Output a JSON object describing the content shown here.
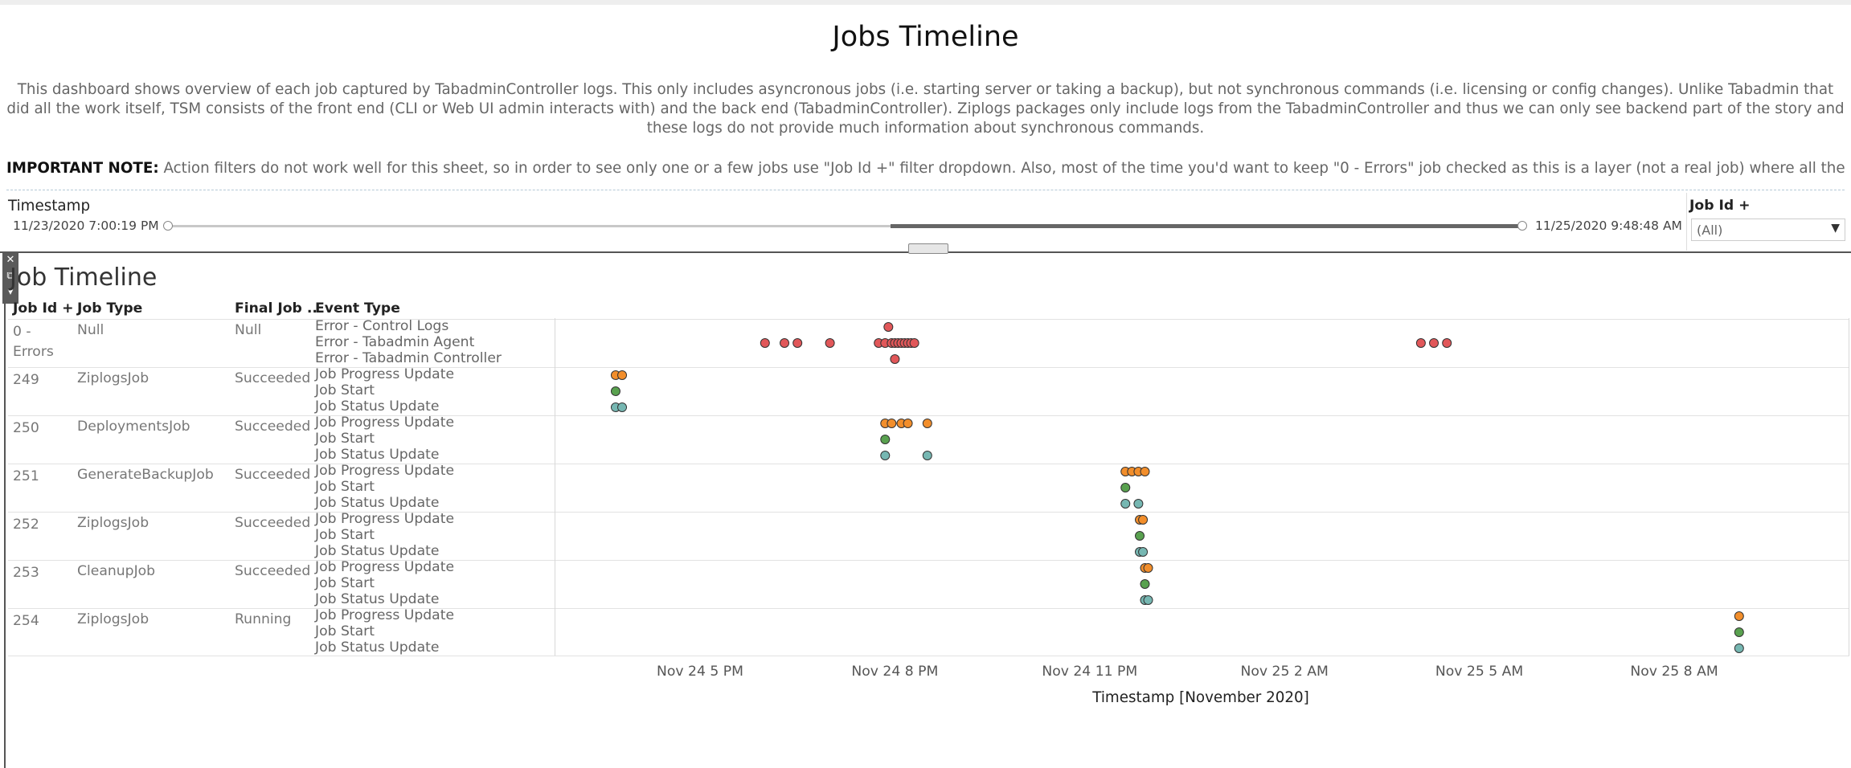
{
  "dashboard": {
    "title": "Jobs Timeline",
    "description": "This dashboard shows overview of each job captured by TabadminController logs. This only includes asyncronous jobs (i.e. starting server or taking a backup), but not synchronous commands (i.e. licensing or config changes). Unlike Tabadmin that did all the work itself, TSM consists of the front end (CLI or Web UI admin interacts with) and the back end (TabadminController). Ziplogs packages only include logs from the TabadminController and thus we can only see backend part of the story and these logs do not provide much information about synchronous commands.",
    "note_label": "IMPORTANT NOTE:",
    "note_text": " Action filters do not work well for this sheet, so in order to see only one or a few jobs use \"Job Id +\" filter dropdown. Also, most of the time you'd want to keep \"0 - Errors\" job checked as this is a layer (not a real job) where all the errors are displayed. .."
  },
  "filters": {
    "timestamp_label": "Timestamp",
    "timestamp_start": "11/23/2020 7:00:19 PM",
    "timestamp_end": "11/25/2020 9:48:48 AM",
    "jobid_label": "Job Id +",
    "jobid_value": "(All)"
  },
  "toolbar": {
    "close": "✕",
    "popout": "⧉",
    "menu": "▾"
  },
  "sheet": {
    "title": "Job Timeline",
    "headers": {
      "job_id": "Job Id +",
      "job_type": "Job Type",
      "final": "Final Job ..",
      "event": "Event Type"
    }
  },
  "rows": [
    {
      "job_id": "0 -\nErrors",
      "job_type": "Null",
      "final": "Null",
      "events": [
        "Error - Control Logs",
        "Error - Tabadmin Agent",
        "Error - Tabadmin Controller"
      ]
    },
    {
      "job_id": "249",
      "job_type": "ZiplogsJob",
      "final": "Succeeded",
      "events": [
        "Job Progress Update",
        "Job Start",
        "Job Status Update"
      ]
    },
    {
      "job_id": "250",
      "job_type": "DeploymentsJob",
      "final": "Succeeded",
      "events": [
        "Job Progress Update",
        "Job Start",
        "Job Status Update"
      ]
    },
    {
      "job_id": "251",
      "job_type": "GenerateBackupJob",
      "final": "Succeeded",
      "events": [
        "Job Progress Update",
        "Job Start",
        "Job Status Update"
      ]
    },
    {
      "job_id": "252",
      "job_type": "ZiplogsJob",
      "final": "Succeeded",
      "events": [
        "Job Progress Update",
        "Job Start",
        "Job Status Update"
      ]
    },
    {
      "job_id": "253",
      "job_type": "CleanupJob",
      "final": "Succeeded",
      "events": [
        "Job Progress Update",
        "Job Start",
        "Job Status Update"
      ]
    },
    {
      "job_id": "254",
      "job_type": "ZiplogsJob",
      "final": "Running",
      "events": [
        "Job Progress Update",
        "Job Start",
        "Job Status Update"
      ]
    }
  ],
  "chart_data": {
    "type": "scatter",
    "xlabel": "Timestamp [November 2020]",
    "x_ticks": [
      "Nov 24 5 PM",
      "Nov 24 8 PM",
      "Nov 24 11 PM",
      "Nov 25 2 AM",
      "Nov 25 5 AM",
      "Nov 25 8 AM"
    ],
    "x_unit": "hours since Nov 24 5 PM",
    "colors": {
      "Error": "#e15759",
      "Job Progress Update": "#f28e2b",
      "Job Start": "#59a14f",
      "Job Status Update": "#76b7b2"
    },
    "series": [
      {
        "row": 0,
        "event": "Error - Control Logs",
        "color_key": "Error",
        "x": [
          2.9
        ]
      },
      {
        "row": 0,
        "event": "Error - Tabadmin Agent",
        "color_key": "Error",
        "x": [
          1.0,
          1.3,
          1.5,
          2.0,
          2.75,
          2.85,
          2.95,
          3.0,
          3.05,
          3.1,
          3.15,
          3.2,
          3.25,
          3.3,
          11.1,
          11.3,
          11.5
        ]
      },
      {
        "row": 0,
        "event": "Error - Tabadmin Controller",
        "color_key": "Error",
        "x": [
          3.0
        ]
      },
      {
        "row": 1,
        "event": "Job Progress Update",
        "color_key": "Job Progress Update",
        "x": [
          -1.3,
          -1.2
        ]
      },
      {
        "row": 1,
        "event": "Job Start",
        "color_key": "Job Start",
        "x": [
          -1.3
        ]
      },
      {
        "row": 1,
        "event": "Job Status Update",
        "color_key": "Job Status Update",
        "x": [
          -1.3,
          -1.2
        ]
      },
      {
        "row": 2,
        "event": "Job Progress Update",
        "color_key": "Job Progress Update",
        "x": [
          2.85,
          2.95,
          3.1,
          3.2,
          3.5
        ]
      },
      {
        "row": 2,
        "event": "Job Start",
        "color_key": "Job Start",
        "x": [
          2.85
        ]
      },
      {
        "row": 2,
        "event": "Job Status Update",
        "color_key": "Job Status Update",
        "x": [
          2.85,
          3.5
        ]
      },
      {
        "row": 3,
        "event": "Job Progress Update",
        "color_key": "Job Progress Update",
        "x": [
          6.55,
          6.65,
          6.75,
          6.85
        ]
      },
      {
        "row": 3,
        "event": "Job Start",
        "color_key": "Job Start",
        "x": [
          6.55
        ]
      },
      {
        "row": 3,
        "event": "Job Status Update",
        "color_key": "Job Status Update",
        "x": [
          6.55,
          6.75
        ]
      },
      {
        "row": 4,
        "event": "Job Progress Update",
        "color_key": "Job Progress Update",
        "x": [
          6.77,
          6.82
        ]
      },
      {
        "row": 4,
        "event": "Job Start",
        "color_key": "Job Start",
        "x": [
          6.77
        ]
      },
      {
        "row": 4,
        "event": "Job Status Update",
        "color_key": "Job Status Update",
        "x": [
          6.77,
          6.82
        ]
      },
      {
        "row": 5,
        "event": "Job Progress Update",
        "color_key": "Job Progress Update",
        "x": [
          6.85,
          6.9
        ]
      },
      {
        "row": 5,
        "event": "Job Start",
        "color_key": "Job Start",
        "x": [
          6.85
        ]
      },
      {
        "row": 5,
        "event": "Job Status Update",
        "color_key": "Job Status Update",
        "x": [
          6.85,
          6.9
        ]
      },
      {
        "row": 6,
        "event": "Job Progress Update",
        "color_key": "Job Progress Update",
        "x": [
          16.0
        ]
      },
      {
        "row": 6,
        "event": "Job Start",
        "color_key": "Job Start",
        "x": [
          16.0
        ]
      },
      {
        "row": 6,
        "event": "Job Status Update",
        "color_key": "Job Status Update",
        "x": [
          16.0
        ]
      }
    ]
  }
}
